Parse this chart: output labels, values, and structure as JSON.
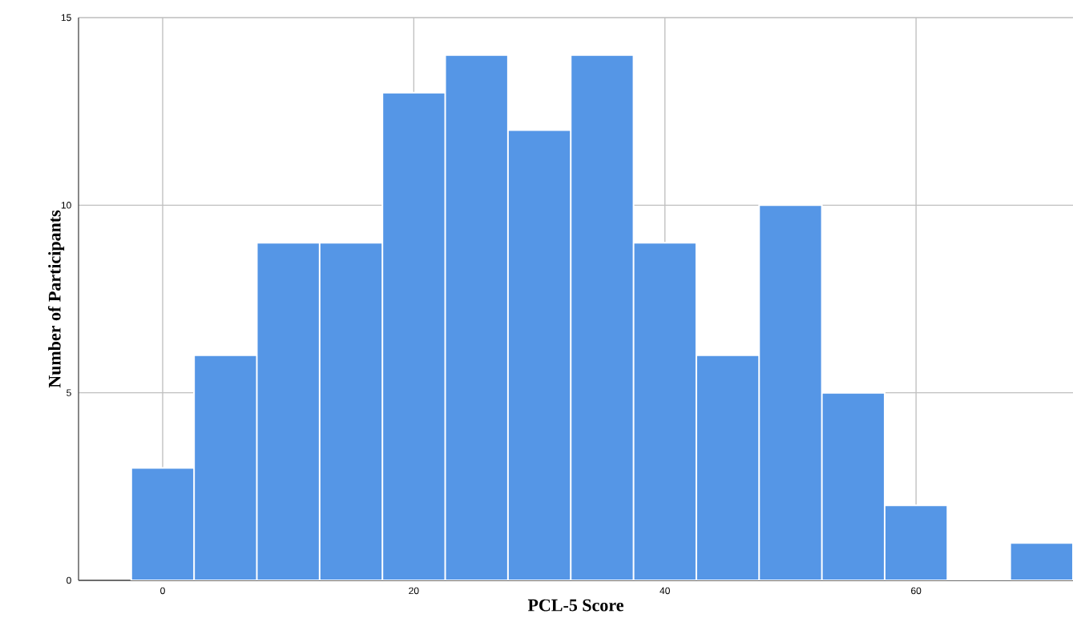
{
  "chart_data": {
    "type": "histogram",
    "xlabel": "PCL-5 Score",
    "ylabel": "Number of Participants",
    "bins": [
      -2.5,
      2.5,
      7.5,
      12.5,
      17.5,
      22.5,
      27.5,
      32.5,
      37.5,
      42.5,
      47.5,
      52.5,
      57.5,
      62.5,
      67.5,
      72.5
    ],
    "values": [
      3,
      6,
      9,
      9,
      13,
      14,
      12,
      14,
      9,
      6,
      10,
      5,
      2,
      0,
      1
    ],
    "color": "#5596e6",
    "xlim": [
      -6.7,
      72.5
    ],
    "ylim": [
      0,
      15
    ],
    "xticks": [
      0,
      20,
      40,
      60
    ],
    "yticks": [
      0,
      5,
      10,
      15
    ],
    "grid": true
  }
}
